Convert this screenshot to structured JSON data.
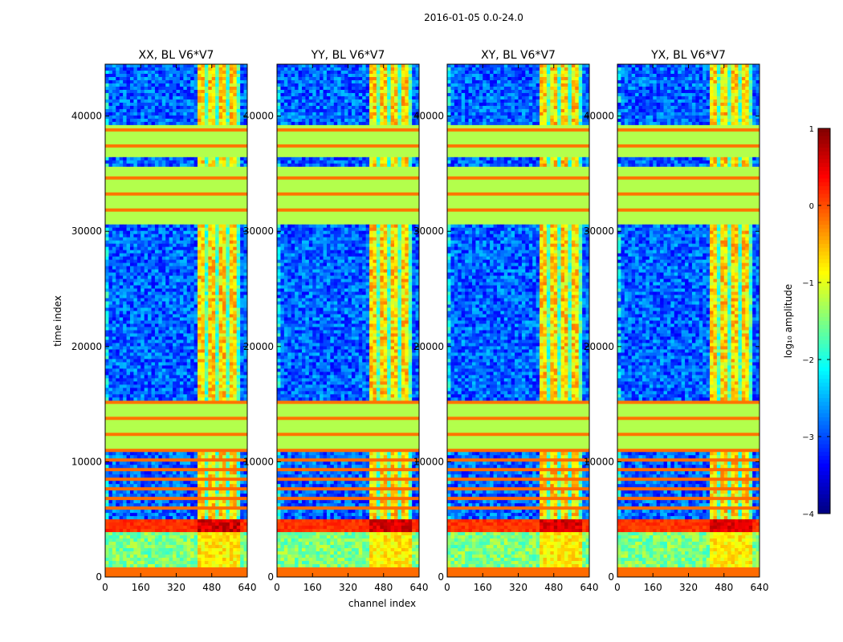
{
  "chart_data": {
    "type": "heatmap",
    "suptitle": "2016-01-05 0.0-24.0",
    "xlabel": "channel index",
    "ylabel": "time index",
    "xlim": [
      0,
      640
    ],
    "ylim": [
      0,
      44500
    ],
    "xticks": [
      0,
      160,
      320,
      480,
      640
    ],
    "yticks": [
      0,
      10000,
      20000,
      30000,
      40000
    ],
    "panels": [
      {
        "title": "XX, BL V6*V7",
        "rfi_band": [
          410,
          600
        ],
        "hot_strength": 1.0
      },
      {
        "title": "YY, BL V6*V7",
        "rfi_band": [
          410,
          600
        ],
        "hot_strength": 0.85
      },
      {
        "title": "XY, BL V6*V7",
        "rfi_band": [
          410,
          600
        ],
        "hot_strength": 0.8
      },
      {
        "title": "YX, BL V6*V7",
        "rfi_band": [
          410,
          600
        ],
        "hot_strength": 0.75
      }
    ],
    "flagged_time_blocks": [
      [
        11200,
        15400
      ],
      [
        30500,
        35600
      ],
      [
        36300,
        39300
      ]
    ],
    "bright_time_band": [
      4000,
      5000
    ],
    "colorbar": {
      "label": "log₁₀ amplitude",
      "range": [
        -4,
        1
      ],
      "ticks": [
        1,
        0,
        -1,
        -2,
        -3,
        -4
      ],
      "tick_labels": [
        "1",
        "0",
        "−1",
        "−2",
        "−3",
        "−4"
      ],
      "colormap": "jet"
    }
  }
}
